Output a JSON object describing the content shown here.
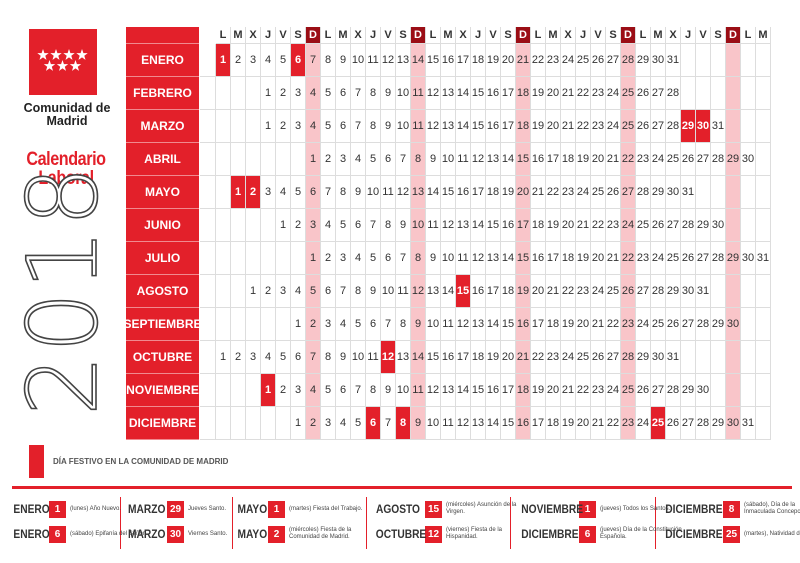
{
  "header": {
    "org": "Comunidad de Madrid",
    "title_line1": "Calendario",
    "title_line2": "Laboral",
    "year": "2018"
  },
  "colors": {
    "brand_red": "#e3202a",
    "sunday_header": "#9b0e16",
    "sunday_column": "#f9c5c9"
  },
  "weekdays": [
    "L",
    "M",
    "X",
    "J",
    "V",
    "S",
    "D"
  ],
  "months": [
    {
      "name": "ENERO",
      "offset": 0,
      "days": 31,
      "holidays": [
        1,
        6
      ]
    },
    {
      "name": "FEBRERO",
      "offset": 3,
      "days": 28,
      "holidays": []
    },
    {
      "name": "MARZO",
      "offset": 3,
      "days": 31,
      "holidays": [
        29,
        30
      ]
    },
    {
      "name": "ABRIL",
      "offset": 6,
      "days": 30,
      "holidays": []
    },
    {
      "name": "MAYO",
      "offset": 1,
      "days": 31,
      "holidays": [
        1,
        2
      ]
    },
    {
      "name": "JUNIO",
      "offset": 4,
      "days": 30,
      "holidays": []
    },
    {
      "name": "JULIO",
      "offset": 6,
      "days": 31,
      "holidays": []
    },
    {
      "name": "AGOSTO",
      "offset": 2,
      "days": 31,
      "holidays": [
        15
      ]
    },
    {
      "name": "SEPTIEMBRE",
      "offset": 5,
      "days": 30,
      "holidays": []
    },
    {
      "name": "OCTUBRE",
      "offset": 0,
      "days": 31,
      "holidays": [
        12
      ]
    },
    {
      "name": "NOVIEMBRE",
      "offset": 3,
      "days": 30,
      "holidays": [
        1
      ]
    },
    {
      "name": "DICIEMBRE",
      "offset": 5,
      "days": 31,
      "holidays": [
        6,
        8,
        25
      ]
    }
  ],
  "legend": "DÍA FESTIVO EN LA COMUNIDAD DE MADRID",
  "footer": [
    [
      {
        "month": "ENERO",
        "day": "1",
        "desc": "(lunes) Año Nuevo."
      },
      {
        "month": "ENERO",
        "day": "6",
        "desc": "(sábado) Epifanía del Señor."
      }
    ],
    [
      {
        "month": "MARZO",
        "day": "29",
        "desc": "Jueves Santo."
      },
      {
        "month": "MARZO",
        "day": "30",
        "desc": "Viernes Santo."
      }
    ],
    [
      {
        "month": "MAYO",
        "day": "1",
        "desc": "(martes) Fiesta del Trabajo."
      },
      {
        "month": "MAYO",
        "day": "2",
        "desc": "(miércoles) Fiesta de la Comunidad de Madrid."
      }
    ],
    [
      {
        "month": "AGOSTO",
        "day": "15",
        "desc": "(miércoles) Asunción de la Virgen."
      },
      {
        "month": "OCTUBRE",
        "day": "12",
        "desc": "(viernes) Fiesta de la Hispanidad."
      }
    ],
    [
      {
        "month": "NOVIEMBRE",
        "day": "1",
        "desc": "(jueves) Todos los Santos."
      },
      {
        "month": "DICIEMBRE",
        "day": "6",
        "desc": "(jueves) Día de la Constitución Española."
      }
    ],
    [
      {
        "month": "DICIEMBRE",
        "day": "8",
        "desc": "(sábado), Día de la Inmaculada Concepción."
      },
      {
        "month": "DICIEMBRE",
        "day": "25",
        "desc": "(martes), Natividad del Señor."
      }
    ]
  ]
}
